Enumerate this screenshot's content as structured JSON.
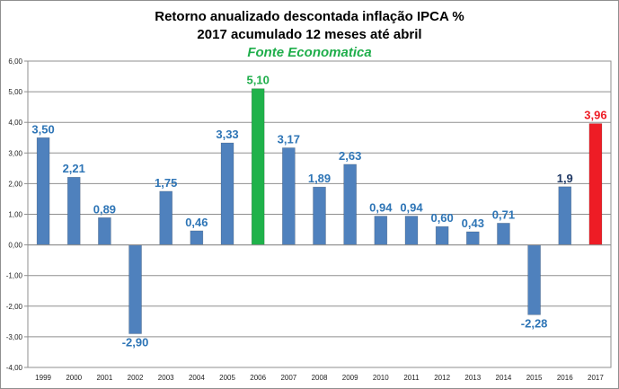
{
  "chart_data": {
    "type": "bar",
    "title": "Retorno anualizado descontada inflação IPCA %",
    "subtitle": "2017 acumulado 12 meses até abril",
    "source": "Fonte Economatica",
    "categories": [
      "1999",
      "2000",
      "2001",
      "2002",
      "2003",
      "2004",
      "2005",
      "2006",
      "2007",
      "2008",
      "2009",
      "2010",
      "2011",
      "2012",
      "2013",
      "2014",
      "2015",
      "2016",
      "2017"
    ],
    "values": [
      3.5,
      2.21,
      0.89,
      -2.9,
      1.75,
      0.46,
      3.33,
      5.1,
      3.17,
      1.89,
      2.63,
      0.94,
      0.94,
      0.6,
      0.43,
      0.71,
      -2.28,
      1.9,
      3.96
    ],
    "data_labels": [
      "3,50",
      "2,21",
      "0,89",
      "-2,90",
      "1,75",
      "0,46",
      "3,33",
      "5,10",
      "3,17",
      "1,89",
      "2,63",
      "0,94",
      "0,94",
      "0,60",
      "0,43",
      "0,71",
      "-2,28",
      "1,9",
      "3,96"
    ],
    "y_ticks": [
      "6,00",
      "5,00",
      "4,00",
      "3,00",
      "2,00",
      "1,00",
      "0,00",
      "-1,00",
      "-2,00",
      "-3,00",
      "-4,00"
    ],
    "ylim": [
      -4,
      6
    ],
    "grid": true,
    "colors": {
      "default_bar": "#4f81bd",
      "highlight_max": "#1fb24a",
      "highlight_last": "#ee1c25",
      "label_default": "#2e75b6",
      "label_max": "#1fae4b",
      "label_last": "#ee1c25",
      "label_2016": "#1f3864"
    }
  }
}
